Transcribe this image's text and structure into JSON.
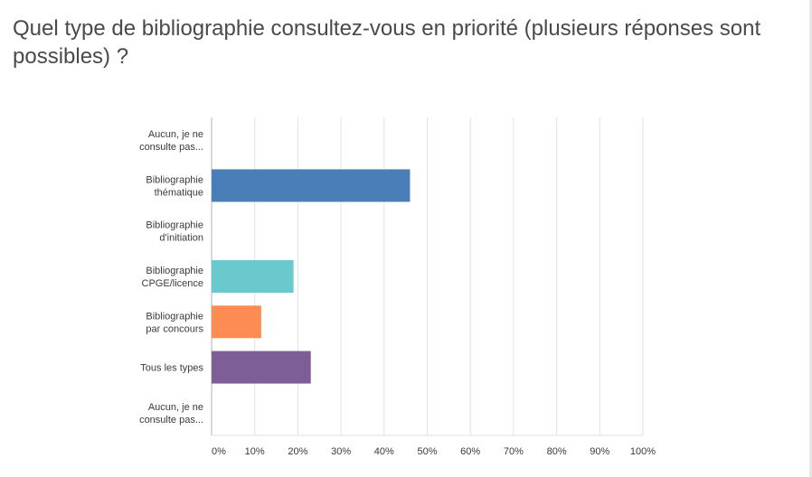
{
  "question": {
    "title": "Quel type de bibliographie consultez-vous en priorité (plusieurs réponses sont possibles) ?"
  },
  "chart_data": {
    "type": "bar",
    "orientation": "horizontal",
    "title": "Quel type de bibliographie consultez-vous en priorité (plusieurs réponses sont possibles) ?",
    "xlabel": "",
    "ylabel": "",
    "xlim": [
      0,
      100
    ],
    "x_ticks": [
      "0%",
      "10%",
      "20%",
      "30%",
      "40%",
      "50%",
      "60%",
      "70%",
      "80%",
      "90%",
      "100%"
    ],
    "grid": true,
    "categories": [
      [
        "Aucun, je ne",
        "consulte pas..."
      ],
      [
        "Bibliographie",
        "thématique"
      ],
      [
        "Bibliographie",
        "d'initiation"
      ],
      [
        "Bibliographie",
        "CPGE/licence"
      ],
      [
        "Bibliographie",
        "par concours"
      ],
      [
        "Tous les types"
      ],
      [
        "Aucun, je ne",
        "consulte pas..."
      ]
    ],
    "values": [
      0,
      46,
      0,
      19,
      11.5,
      23,
      0
    ],
    "colors": [
      "#4a7eb8",
      "#4a7eb8",
      "#6ac9cc",
      "#6ac9cc",
      "#fd8c52",
      "#7e5f95",
      "#7e5f95"
    ]
  }
}
